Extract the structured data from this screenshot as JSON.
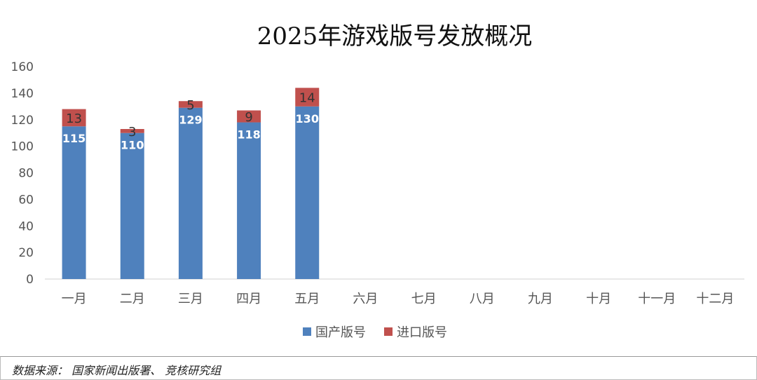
{
  "chart_data": {
    "type": "bar",
    "stacked": true,
    "title": "2025年游戏版号发放概况",
    "categories": [
      "一月",
      "二月",
      "三月",
      "四月",
      "五月",
      "六月",
      "七月",
      "八月",
      "九月",
      "十月",
      "十一月",
      "十二月"
    ],
    "series": [
      {
        "name": "国产版号",
        "color": "#4f81bd",
        "values": [
          115,
          110,
          129,
          118,
          130,
          null,
          null,
          null,
          null,
          null,
          null,
          null
        ]
      },
      {
        "name": "进口版号",
        "color": "#c0504d",
        "values": [
          13,
          3,
          5,
          9,
          14,
          null,
          null,
          null,
          null,
          null,
          null,
          null
        ]
      }
    ],
    "ylim": [
      0,
      160
    ],
    "yticks": [
      0,
      20,
      40,
      60,
      80,
      100,
      120,
      140,
      160
    ],
    "grid": false,
    "legend": "bottom-center"
  },
  "footer": {
    "source": "数据来源： 国家新闻出版署、 竞核研究组"
  }
}
